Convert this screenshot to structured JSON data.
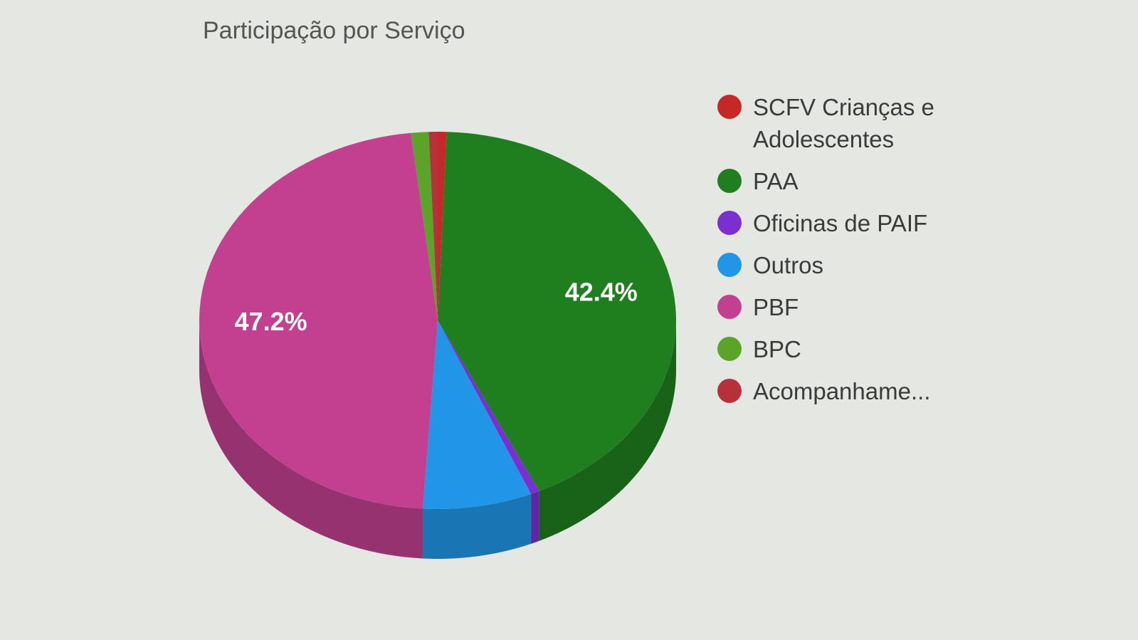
{
  "chart_data": {
    "type": "pie3d",
    "title": "Participação por Serviço",
    "categories": [
      "SCFV Crianças e Adolescentes",
      "PAA",
      "Oficinas de PAIF",
      "Outros",
      "PBF",
      "BPC",
      "Acompanhame..."
    ],
    "values": [
      0.6,
      42.4,
      0.6,
      7.4,
      47.2,
      1.2,
      0.6
    ],
    "value_labels": [
      null,
      "42.4%",
      null,
      null,
      "47.2%",
      null,
      null
    ],
    "colors": [
      "#c62828",
      "#1f7f1f",
      "#7b2fd0",
      "#2196e8",
      "#c2408f",
      "#5aa42a",
      "#b5323c"
    ]
  }
}
